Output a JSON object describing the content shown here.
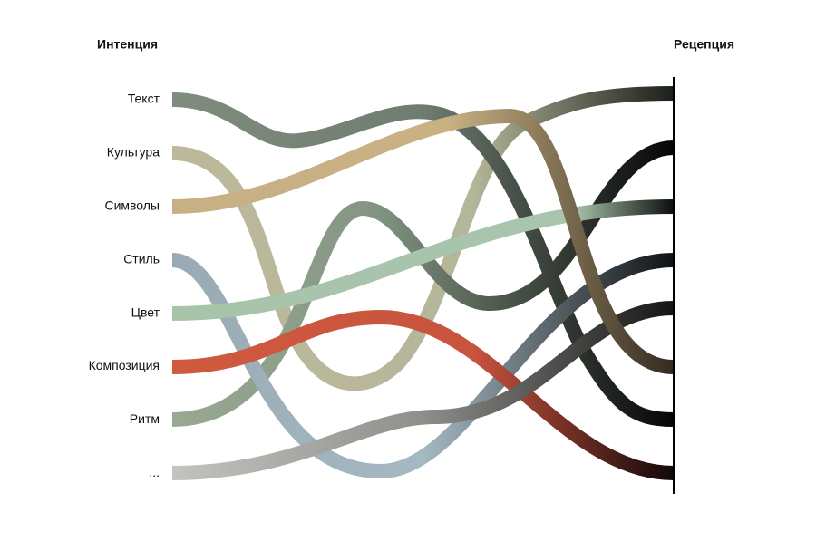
{
  "header": {
    "left": "Интенция",
    "right": "Рецепция"
  },
  "labels": [
    "Текст",
    "Культура",
    "Символы",
    "Стиль",
    "Цвет",
    "Композиция",
    "Ритм",
    "..."
  ]
}
